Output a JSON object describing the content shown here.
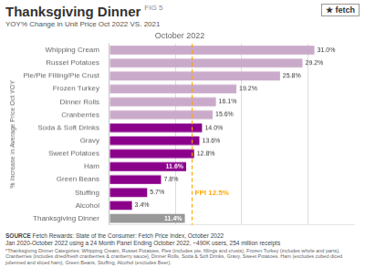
{
  "chart_data": {
    "type": "bar",
    "orientation": "horizontal",
    "title": "Thanksgiving Dinner",
    "title_suffix": "FIG 5",
    "subtitle": "YOY% Change in Unit Price Oct 2022 VS. 2021",
    "chart_label": "October 2022",
    "ylabel": "% Increase in Average Price Oct YOY",
    "logo": [
      "★",
      "fetch"
    ],
    "categories": [
      "Whipping Cream",
      "Russet Potatoes",
      "Pie/Pie Filling/Pie Crust",
      "Frozen Turkey",
      "Dinner Rolls",
      "Cranberries",
      "Soda & Soft Drinks",
      "Gravy",
      "Sweet Potatoes",
      "Ham",
      "Green Beans",
      "Stuffing",
      "Alcohol",
      "Thanksgiving Dinner"
    ],
    "values": [
      31.0,
      29.2,
      25.8,
      19.2,
      16.1,
      15.6,
      14.0,
      13.6,
      12.8,
      11.6,
      7.8,
      5.7,
      3.4,
      11.4
    ],
    "value_labels": [
      "31.0%",
      "29.2%",
      "25.8%",
      "19.2%",
      "16.1%",
      "15.6%",
      "14.0%",
      "13.6%",
      "12.8%",
      "11.6%",
      "7.8%",
      "5.7%",
      "3.4%",
      "11.4%"
    ],
    "colors": [
      "#caaaca",
      "#caaaca",
      "#caaaca",
      "#caaaca",
      "#caaaca",
      "#caaaca",
      "#8b008b",
      "#8b008b",
      "#8b008b",
      "#8b008b",
      "#8b008b",
      "#8b008b",
      "#8b008b",
      "#999999"
    ],
    "data_labels": true,
    "xlim": [
      0,
      37
    ],
    "xticks": [
      0,
      10,
      20,
      30
    ],
    "tick_labels": "y",
    "grid": true,
    "annotations": [
      {
        "x": 12.5,
        "text": "FPI 12.5%",
        "color": "#FFA500",
        "line_style": "dashed"
      }
    ],
    "source_label": "SOURCE",
    "source": [
      " Fetch Rewards: State of the Consumer: Fetch Price Index, October 2022",
      "Jan 2020-October 2022 using a 24 Month Panel Ending October 2022, ~490K users, 254 million receipts"
    ],
    "footnote": "*Thanksgiving Dinner Categories: Whipping Cream, Russet Potatoes, Pies (includes pie, fillings and crusts), Frozen Turkey (includes whole and parts),\nCranberries (includes dried/fresh cranberries & cranberry sauce), Dinner Rolls, Soda & Soft Drinks, Gravy, Sweet Potatoes.  Ham (excludes cubed diced\njulienned and sliced ham), Green Beans, Stuffing, Alcohol (excludes Beer)."
  }
}
